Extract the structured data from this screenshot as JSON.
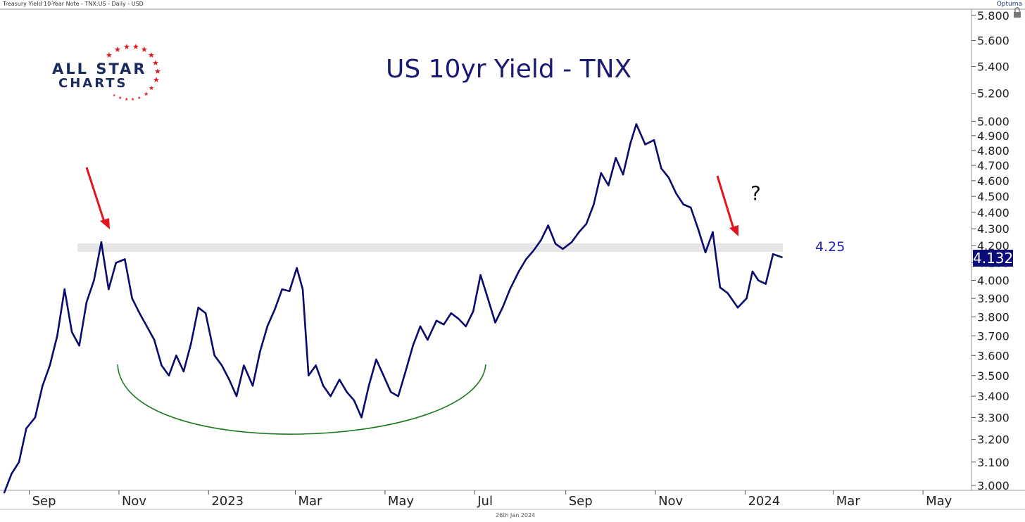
{
  "header": {
    "left_text": "Treasury Yield 10-Year Note - TNX:US - Daily - USD",
    "brand": "Optuma"
  },
  "logo": {
    "line1": "ALL STAR",
    "line2": "CHARTS"
  },
  "footer": {
    "date": "26th Jan 2024"
  },
  "annotations": {
    "question_mark": "?",
    "level_label": "4.25",
    "last_value": "4.132"
  },
  "colors": {
    "line": "#0b0b6e",
    "arrow": "#e3141b",
    "arc": "#1f7a1f",
    "band": "#e6e6e6",
    "title": "#1a1a72"
  },
  "chart_data": {
    "type": "line",
    "title": "US 10yr Yield - TNX",
    "ylim": [
      3.0,
      5.8
    ],
    "y_scale": "log",
    "y_ticks": [
      "3.000",
      "3.100",
      "3.200",
      "3.300",
      "3.400",
      "3.500",
      "3.600",
      "3.700",
      "3.800",
      "3.900",
      "4.000",
      "4.100",
      "4.200",
      "4.300",
      "4.400",
      "4.500",
      "4.600",
      "4.700",
      "4.800",
      "4.900",
      "5.000",
      "5.200",
      "5.400",
      "5.600",
      "5.800"
    ],
    "x_ticks": [
      "Sep",
      "Nov",
      "2023",
      "Mar",
      "May",
      "Jul",
      "Sep",
      "Nov",
      "2024",
      "Mar",
      "May"
    ],
    "x_tick_dates": [
      "2022-09-01",
      "2022-11-01",
      "2023-01-01",
      "2023-03-01",
      "2023-05-01",
      "2023-07-01",
      "2023-09-01",
      "2023-11-01",
      "2024-01-01",
      "2024-03-01",
      "2024-05-01"
    ],
    "xlim": [
      "2022-08-14",
      "2024-06-03"
    ],
    "grid": false,
    "series": [
      {
        "x": [
          "2022-08-15",
          "2022-08-20",
          "2022-08-25",
          "2022-08-30",
          "2022-09-05",
          "2022-09-10",
          "2022-09-15",
          "2022-09-20",
          "2022-09-25",
          "2022-09-30",
          "2022-10-05",
          "2022-10-10",
          "2022-10-15",
          "2022-10-20",
          "2022-10-25",
          "2022-10-30",
          "2022-11-05",
          "2022-11-10",
          "2022-11-15",
          "2022-11-20",
          "2022-11-25",
          "2022-11-30",
          "2022-12-05",
          "2022-12-10",
          "2022-12-15",
          "2022-12-20",
          "2022-12-25",
          "2022-12-30",
          "2023-01-05",
          "2023-01-10",
          "2023-01-15",
          "2023-01-20",
          "2023-01-25",
          "2023-01-31",
          "2023-02-05",
          "2023-02-10",
          "2023-02-15",
          "2023-02-20",
          "2023-02-25",
          "2023-03-02",
          "2023-03-06",
          "2023-03-10",
          "2023-03-15",
          "2023-03-20",
          "2023-03-25",
          "2023-03-31",
          "2023-04-05",
          "2023-04-10",
          "2023-04-15",
          "2023-04-20",
          "2023-04-25",
          "2023-04-30",
          "2023-05-05",
          "2023-05-10",
          "2023-05-15",
          "2023-05-20",
          "2023-05-25",
          "2023-05-30",
          "2023-06-05",
          "2023-06-10",
          "2023-06-15",
          "2023-06-20",
          "2023-06-25",
          "2023-06-30",
          "2023-07-05",
          "2023-07-10",
          "2023-07-15",
          "2023-07-20",
          "2023-07-25",
          "2023-07-31",
          "2023-08-05",
          "2023-08-10",
          "2023-08-15",
          "2023-08-20",
          "2023-08-25",
          "2023-08-30",
          "2023-09-05",
          "2023-09-10",
          "2023-09-15",
          "2023-09-20",
          "2023-09-25",
          "2023-09-30",
          "2023-10-05",
          "2023-10-10",
          "2023-10-15",
          "2023-10-19",
          "2023-10-25",
          "2023-10-31",
          "2023-11-05",
          "2023-11-10",
          "2023-11-15",
          "2023-11-20",
          "2023-11-25",
          "2023-11-30",
          "2023-12-05",
          "2023-12-10",
          "2023-12-15",
          "2023-12-20",
          "2023-12-27",
          "2024-01-02",
          "2024-01-06",
          "2024-01-10",
          "2024-01-15",
          "2024-01-20",
          "2024-01-26"
        ],
        "values": [
          2.97,
          3.05,
          3.1,
          3.25,
          3.3,
          3.45,
          3.55,
          3.7,
          3.95,
          3.72,
          3.65,
          3.88,
          4.0,
          4.22,
          3.95,
          4.1,
          4.12,
          3.9,
          3.82,
          3.75,
          3.68,
          3.55,
          3.5,
          3.6,
          3.52,
          3.66,
          3.85,
          3.82,
          3.6,
          3.55,
          3.48,
          3.4,
          3.55,
          3.45,
          3.62,
          3.75,
          3.84,
          3.95,
          3.94,
          4.07,
          3.95,
          3.5,
          3.55,
          3.45,
          3.4,
          3.48,
          3.42,
          3.38,
          3.3,
          3.45,
          3.58,
          3.5,
          3.42,
          3.4,
          3.52,
          3.65,
          3.75,
          3.68,
          3.78,
          3.76,
          3.82,
          3.79,
          3.75,
          3.83,
          4.03,
          3.9,
          3.77,
          3.85,
          3.95,
          4.05,
          4.12,
          4.17,
          4.23,
          4.32,
          4.21,
          4.18,
          4.22,
          4.28,
          4.33,
          4.45,
          4.65,
          4.57,
          4.75,
          4.64,
          4.85,
          4.98,
          4.84,
          4.87,
          4.68,
          4.62,
          4.52,
          4.45,
          4.43,
          4.3,
          4.16,
          4.28,
          3.96,
          3.93,
          3.85,
          3.9,
          4.05,
          4.0,
          3.98,
          4.15,
          4.132
        ]
      }
    ],
    "reference_band": {
      "value": 4.25,
      "label": "4.25"
    },
    "annotations": [
      "?"
    ]
  }
}
